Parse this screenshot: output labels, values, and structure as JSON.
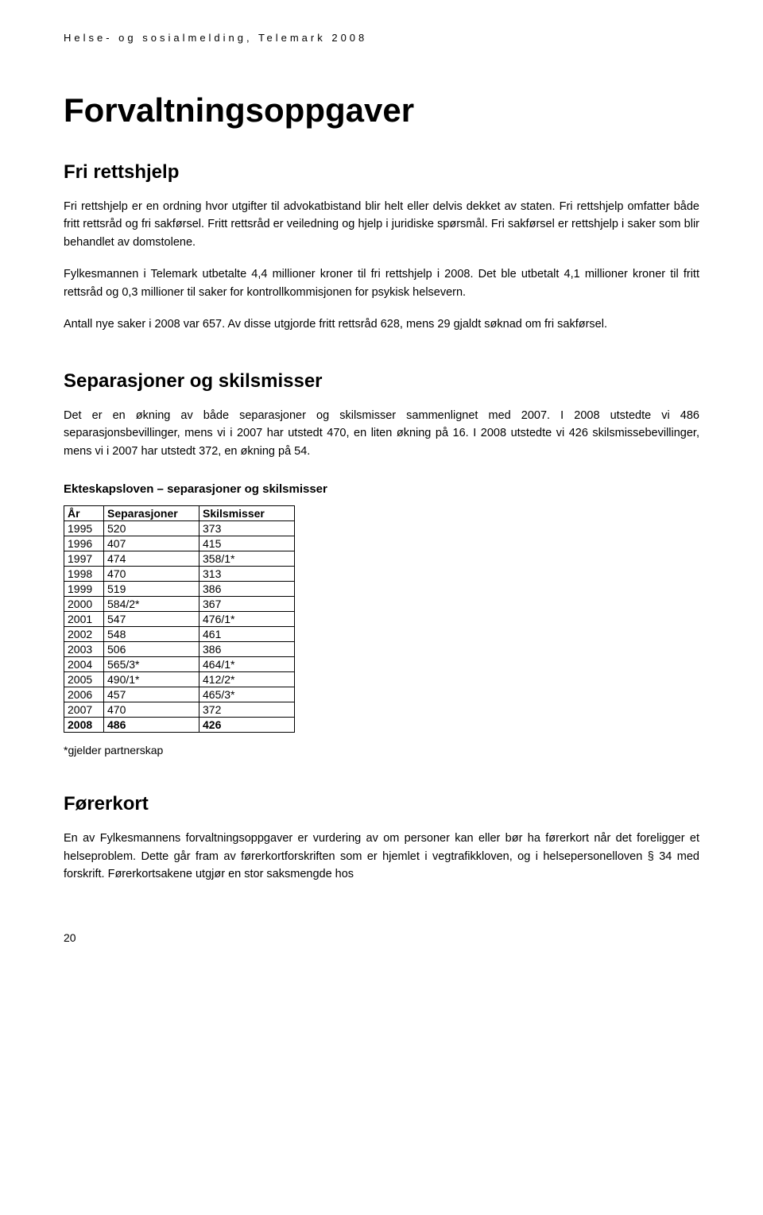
{
  "header": "Helse- og sosialmelding, Telemark 2008",
  "title": "Forvaltningsoppgaver",
  "section1": {
    "heading": "Fri rettshjelp",
    "p1": "Fri rettshjelp er en ordning hvor utgifter til advokatbistand blir helt eller delvis dekket av staten. Fri rettshjelp omfatter både fritt rettsråd og fri sakførsel. Fritt rettsråd er veiledning og hjelp i juridiske spørsmål. Fri sakførsel er rettshjelp i saker som blir behandlet av domstolene.",
    "p2": "Fylkesmannen i Telemark utbetalte 4,4 millioner kroner til fri rettshjelp i 2008. Det ble utbetalt 4,1 millioner kroner til fritt rettsråd og 0,3 millioner til saker for kontrollkommisjonen for psykisk helsevern.",
    "p3": "Antall nye saker i 2008 var 657. Av disse utgjorde fritt rettsråd 628, mens 29 gjaldt søknad om fri sakførsel."
  },
  "section2": {
    "heading": "Separasjoner og skilsmisser",
    "p1": "Det er en økning av både separasjoner og skilsmisser sammenlignet med 2007. I 2008 utstedte vi 486 separasjonsbevillinger, mens vi i 2007 har utstedt 470, en liten økning på 16. I 2008 utstedte vi 426 skilsmissebevillinger, mens vi i 2007 har utstedt 372, en økning på 54.",
    "table_caption": "Ekteskapsloven – separasjoner og skilsmisser",
    "columns": [
      "År",
      "Separasjoner",
      "Skilsmisser"
    ],
    "rows": [
      [
        "1995",
        "520",
        "373"
      ],
      [
        "1996",
        "407",
        "415"
      ],
      [
        "1997",
        "474",
        "358/1*"
      ],
      [
        "1998",
        "470",
        "313"
      ],
      [
        "1999",
        "519",
        "386"
      ],
      [
        "2000",
        "584/2*",
        "367"
      ],
      [
        "2001",
        "547",
        "476/1*"
      ],
      [
        "2002",
        "548",
        "461"
      ],
      [
        "2003",
        "506",
        "386"
      ],
      [
        "2004",
        "565/3*",
        "464/1*"
      ],
      [
        "2005",
        "490/1*",
        "412/2*"
      ],
      [
        "2006",
        "457",
        "465/3*"
      ],
      [
        "2007",
        "470",
        "372"
      ],
      [
        "2008",
        "486",
        "426"
      ]
    ],
    "footnote": "*gjelder partnerskap"
  },
  "section3": {
    "heading": "Førerkort",
    "p1": "En av Fylkesmannens forvaltningsoppgaver er vurdering av om personer kan eller bør ha førerkort når det foreligger et helseproblem. Dette går fram av førerkortforskriften som er hjemlet i vegtrafikkloven, og i helsepersonelloven § 34 med forskrift. Førerkortsakene utgjør en stor saksmengde hos"
  },
  "page_number": "20"
}
